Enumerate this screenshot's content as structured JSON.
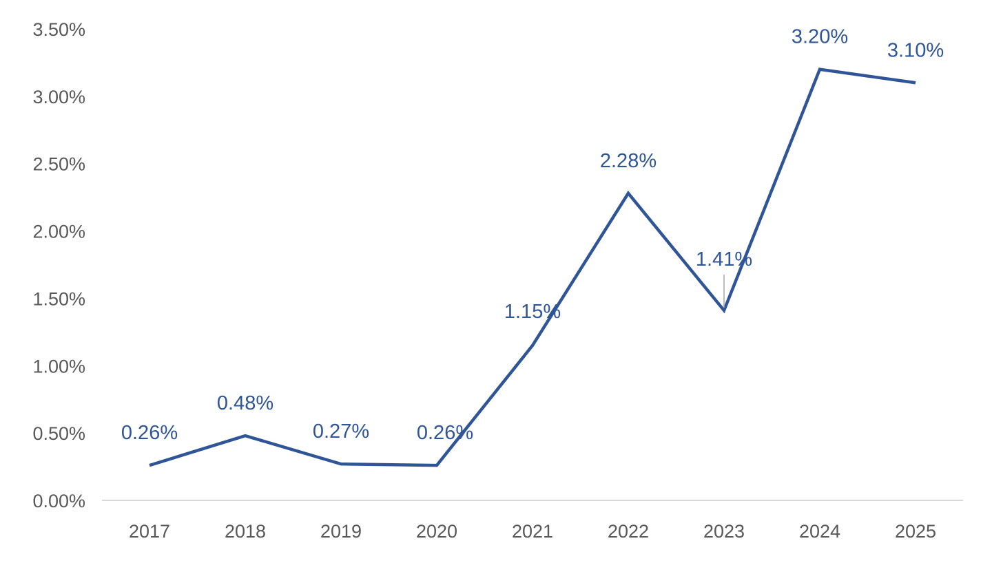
{
  "chart_data": {
    "type": "line",
    "title": "",
    "xlabel": "",
    "ylabel": "",
    "categories": [
      "2017",
      "2018",
      "2019",
      "2020",
      "2021",
      "2022",
      "2023",
      "2024",
      "2025"
    ],
    "series": [
      {
        "values": [
          0.26,
          0.48,
          0.27,
          0.26,
          1.15,
          2.28,
          1.41,
          3.2,
          3.1
        ],
        "labels": [
          "0.26%",
          "0.48%",
          "0.27%",
          "0.26%",
          "1.15%",
          "2.28%",
          "1.41%",
          "3.20%",
          "3.10%"
        ]
      }
    ],
    "ylim": [
      0,
      3.5
    ],
    "y_ticks": [
      "0.00%",
      "0.50%",
      "1.00%",
      "1.50%",
      "2.00%",
      "2.50%",
      "3.00%",
      "3.50%"
    ],
    "grid": false,
    "legend": "none",
    "colors": {
      "line": "#2F5597",
      "axis": "#D9D9D9",
      "tick_text": "#595959",
      "label_text": "#2F5597",
      "leader_line": "#A6A6A6"
    }
  }
}
